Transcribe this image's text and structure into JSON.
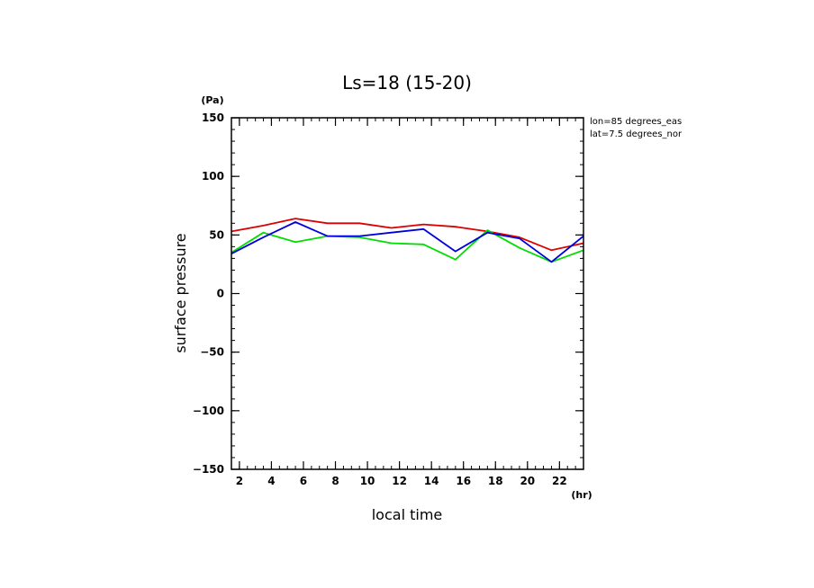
{
  "chart_data": {
    "type": "line",
    "title": "Ls=18 (15-20)",
    "xlabel": "local time",
    "ylabel": "surface pressure",
    "x_unit": "(hr)",
    "y_unit": "(Pa)",
    "xlim": [
      1.5,
      23.5
    ],
    "ylim": [
      -150,
      150
    ],
    "x_ticks": [
      2,
      4,
      6,
      8,
      10,
      12,
      14,
      16,
      18,
      20,
      22
    ],
    "y_ticks": [
      -150,
      -100,
      -50,
      0,
      50,
      100,
      150
    ],
    "annotations": [
      "lon=85 degrees_eas",
      "lat=7.5 degrees_nor"
    ],
    "grid": false,
    "legend": "none",
    "x": [
      1.5,
      3.5,
      5.5,
      7.5,
      9.5,
      11.5,
      13.5,
      15.5,
      17.5,
      19.5,
      21.5,
      23.5
    ],
    "series": [
      {
        "color": "#dd0000",
        "values": [
          53,
          58,
          64,
          60,
          60,
          56,
          59,
          57,
          53,
          48,
          37,
          43
        ]
      },
      {
        "color": "#00dd00",
        "values": [
          35,
          52,
          44,
          49,
          48,
          43,
          42,
          29,
          54,
          39,
          27,
          37
        ]
      },
      {
        "color": "#0000dd",
        "values": [
          34,
          48,
          61,
          49,
          49,
          52,
          55,
          36,
          52,
          47,
          27,
          49
        ]
      }
    ]
  }
}
